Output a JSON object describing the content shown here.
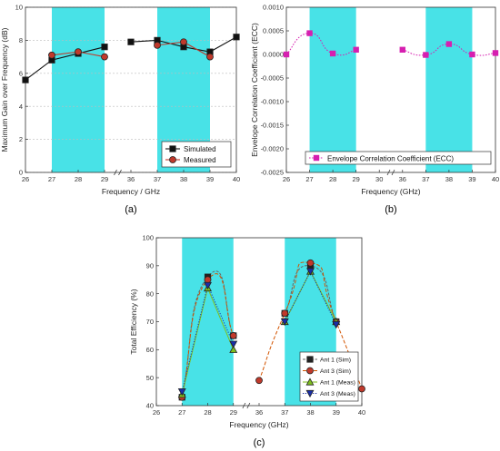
{
  "colors": {
    "band": "#3ee0e6",
    "simulated": "#111111",
    "measured": "#c0392b",
    "ecc": "#d61fb0",
    "ant1_sim": "#222222",
    "ant3_sim": "#c0392b",
    "ant1_meas": "#7fbf1f",
    "ant3_meas": "#1a2ea8",
    "ant1_sim_curve": "#666666",
    "ant3_sim_curve": "#d35400"
  },
  "chart_data": [
    {
      "id": "a",
      "type": "line",
      "panel_label": "(a)",
      "xlabel": "Frequency / GHz",
      "ylabel": "Maximum Gain over Frequency (dB)",
      "xticks": [
        "26",
        "27",
        "28",
        "29",
        "36",
        "37",
        "38",
        "39",
        "40"
      ],
      "ylim": [
        0,
        10
      ],
      "yticks": [
        "0",
        "2",
        "4",
        "6",
        "8",
        "10"
      ],
      "axis_break": "between 29 and 36 GHz",
      "shaded_bands": [
        [
          27,
          29
        ],
        [
          37,
          39
        ]
      ],
      "grid": true,
      "legend_position": "lower-right",
      "series": [
        {
          "name": "Simulated",
          "segments": [
            {
              "x": [
                26,
                27,
                28,
                29
              ],
              "y": [
                5.6,
                6.8,
                7.2,
                7.6
              ]
            },
            {
              "x": [
                36,
                37,
                38,
                39,
                40
              ],
              "y": [
                7.9,
                8.0,
                7.6,
                7.3,
                8.2
              ]
            }
          ]
        },
        {
          "name": "Measured",
          "segments": [
            {
              "x": [
                27,
                28,
                29
              ],
              "y": [
                7.1,
                7.3,
                7.0
              ]
            },
            {
              "x": [
                37,
                38,
                39
              ],
              "y": [
                7.7,
                7.9,
                7.0
              ]
            }
          ]
        }
      ]
    },
    {
      "id": "b",
      "type": "line",
      "panel_label": "(b)",
      "xlabel": "Frequency (GHz)",
      "ylabel": "Envelope Correlation Coefficient (ECC)",
      "xticks": [
        "26",
        "27",
        "28",
        "29",
        "30",
        "36",
        "37",
        "38",
        "39",
        "40"
      ],
      "ylim": [
        -0.0025,
        0.001
      ],
      "yticks": [
        "-0.0025",
        "-0.0020",
        "-0.0015",
        "-0.0010",
        "-0.0005",
        "0.0000",
        "0.0005",
        "0.0010"
      ],
      "axis_break": "between 30 and 36 GHz",
      "shaded_bands": [
        [
          27,
          29
        ],
        [
          37,
          39
        ]
      ],
      "grid": false,
      "legend_position": "lower-right",
      "series": [
        {
          "name": "Envelope Correlation Coefficient (ECC)",
          "segments": [
            {
              "x": [
                26,
                27,
                28,
                29
              ],
              "y": [
                0.0,
                0.00045,
                2e-05,
                0.0001
              ]
            },
            {
              "x": [
                36,
                37,
                38,
                39,
                40
              ],
              "y": [
                0.0001,
                -1e-05,
                0.00022,
                0.0,
                3e-05
              ]
            }
          ]
        }
      ]
    },
    {
      "id": "c",
      "type": "line",
      "panel_label": "(c)",
      "xlabel": "Frequency (GHz)",
      "ylabel": "Total Efficiency (%)",
      "xticks": [
        "26",
        "27",
        "28",
        "29",
        "36",
        "37",
        "38",
        "39",
        "40"
      ],
      "ylim": [
        40,
        100
      ],
      "yticks": [
        "40",
        "50",
        "60",
        "70",
        "80",
        "90",
        "100"
      ],
      "axis_break": "between 29 and 36 GHz",
      "shaded_bands": [
        [
          27,
          29
        ],
        [
          37,
          39
        ]
      ],
      "grid": false,
      "legend_position": "lower-right",
      "series": [
        {
          "name": "Ant 1 (Sim)",
          "segments": [
            {
              "x": [
                27,
                28,
                29
              ],
              "y": [
                43,
                86,
                65
              ]
            },
            {
              "x": [
                37,
                38,
                39
              ],
              "y": [
                73,
                90,
                70
              ]
            }
          ]
        },
        {
          "name": "Ant 3 (Sim)",
          "segments": [
            {
              "x": [
                27,
                28,
                29
              ],
              "y": [
                43,
                85,
                65
              ]
            },
            {
              "x": [
                36,
                37,
                38,
                39,
                40
              ],
              "y": [
                49,
                73,
                91,
                70,
                46
              ]
            }
          ]
        },
        {
          "name": "Ant 1 (Meas)",
          "segments": [
            {
              "x": [
                27,
                28,
                29
              ],
              "y": [
                44,
                82,
                60
              ]
            },
            {
              "x": [
                37,
                38,
                39
              ],
              "y": [
                70,
                88,
                70
              ]
            }
          ]
        },
        {
          "name": "Ant 3 (Meas)",
          "segments": [
            {
              "x": [
                27,
                28,
                29
              ],
              "y": [
                45,
                83,
                62
              ]
            },
            {
              "x": [
                37,
                38,
                39
              ],
              "y": [
                70,
                88,
                69
              ]
            }
          ]
        }
      ]
    }
  ]
}
